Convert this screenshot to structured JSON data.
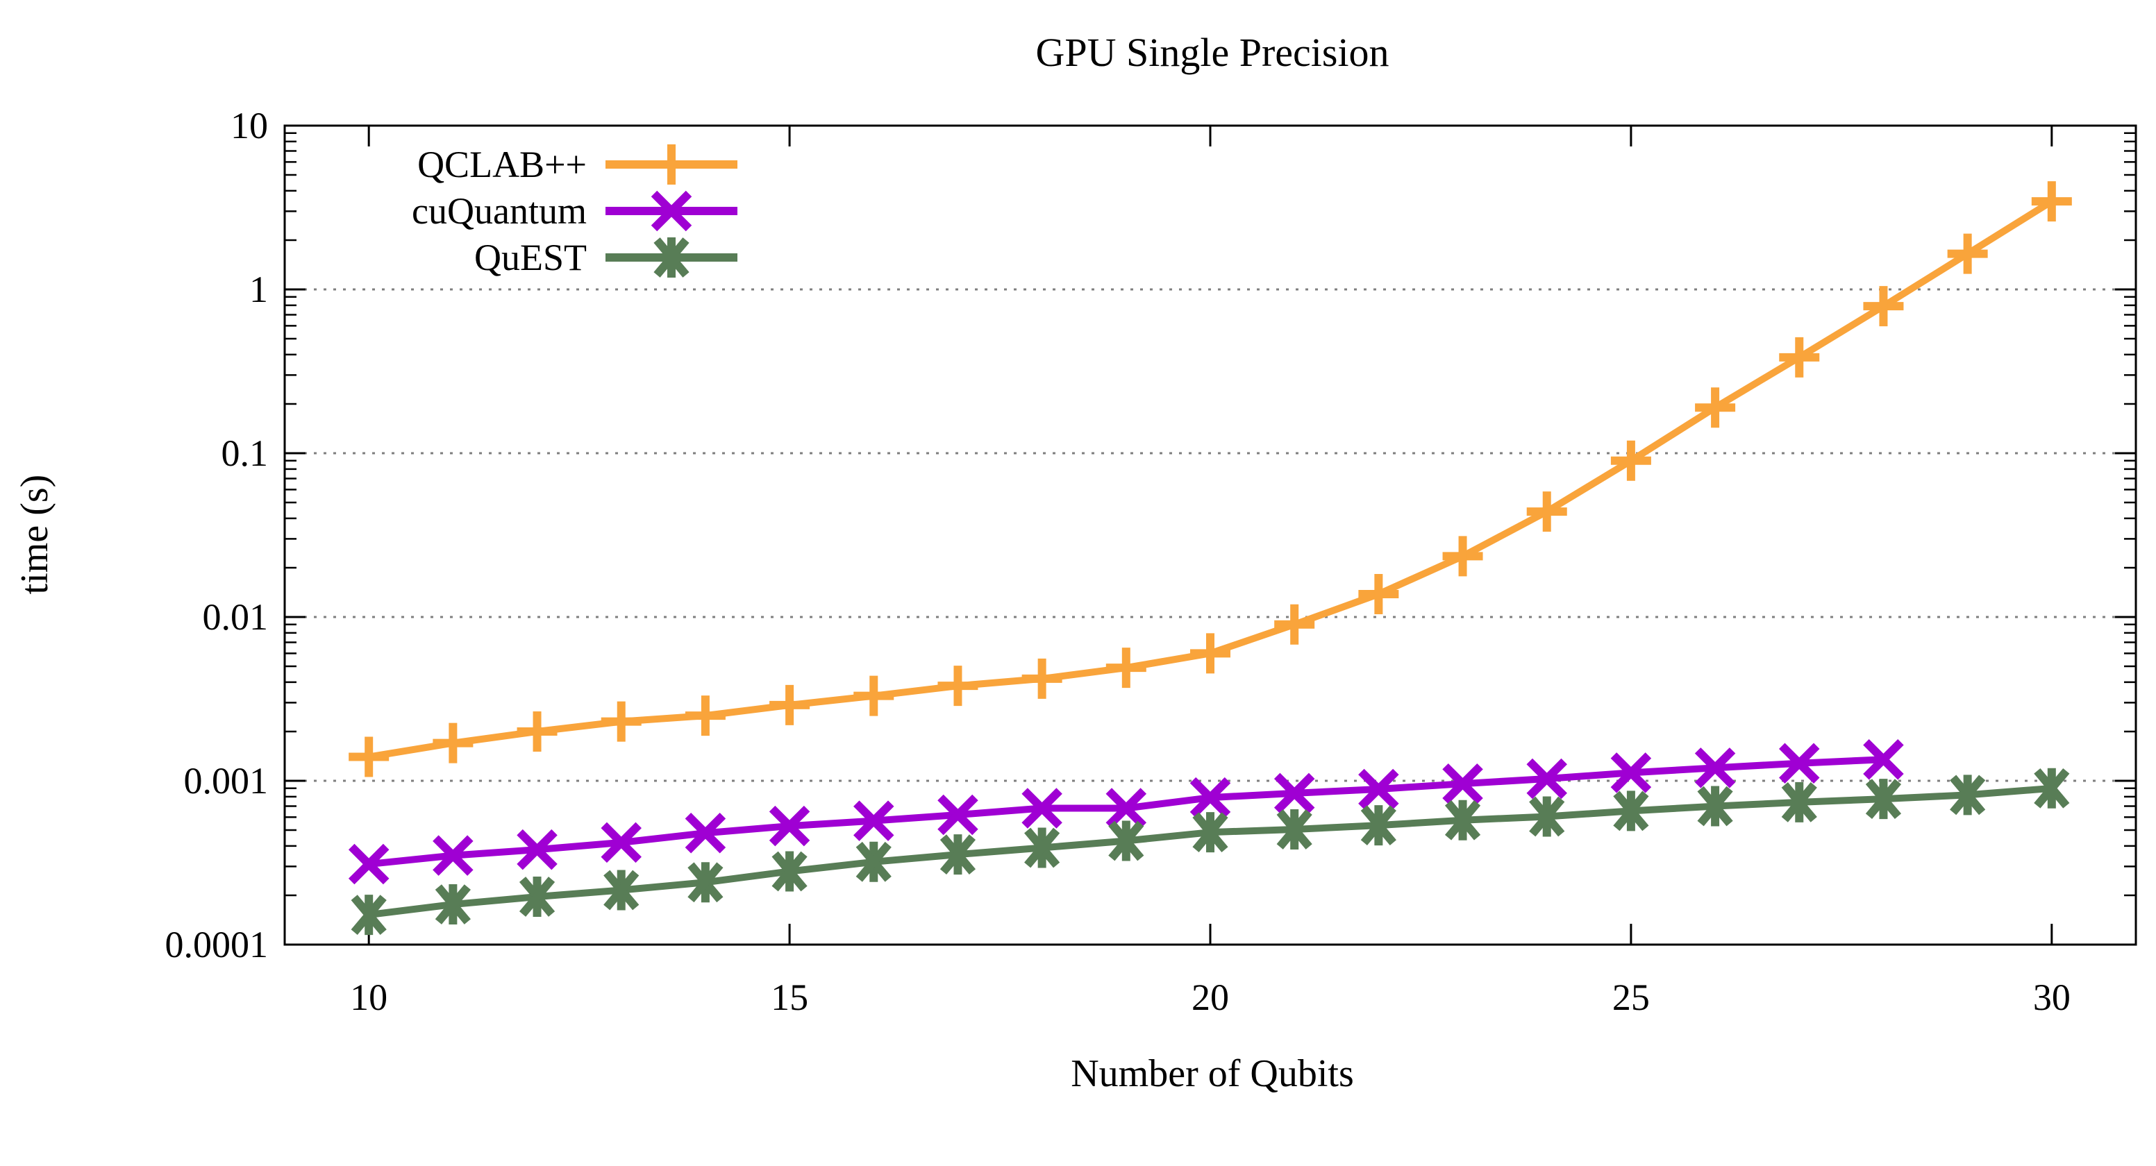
{
  "chart_data": {
    "type": "line",
    "title": "GPU Single Precision",
    "xlabel": "Number of Qubits",
    "ylabel": "time (s)",
    "grid": "horizontal dotted lines at each decade",
    "legend_position": "top-left inside plot",
    "x_axis": {
      "min": 9,
      "max": 31,
      "ticks": [
        10,
        15,
        20,
        25,
        30
      ],
      "tick_labels": [
        "10",
        "15",
        "20",
        "25",
        "30"
      ]
    },
    "y_axis": {
      "scale": "log",
      "min": 0.0001,
      "max": 10,
      "tick_values": [
        10,
        1,
        0.1,
        0.01,
        0.001,
        0.0001
      ],
      "tick_labels": [
        "10",
        "1",
        "0.1",
        "0.01",
        "0.001",
        "0.0001"
      ],
      "minor_ticks": "log subdivisions 2-9 per decade"
    },
    "series": [
      {
        "name": "QCLAB++",
        "color": "#F9A43B",
        "marker": "plus",
        "x": [
          10,
          11,
          12,
          13,
          14,
          15,
          16,
          17,
          18,
          19,
          20,
          21,
          22,
          23,
          24,
          25,
          26,
          27,
          28,
          29,
          30
        ],
        "y": [
          0.0014,
          0.0017,
          0.002,
          0.0023,
          0.0025,
          0.0029,
          0.0033,
          0.0038,
          0.0042,
          0.0049,
          0.006,
          0.009,
          0.0138,
          0.0235,
          0.044,
          0.09,
          0.19,
          0.385,
          0.79,
          1.65,
          3.45
        ]
      },
      {
        "name": "cuQuantum",
        "color": "#9F00D3",
        "marker": "cross",
        "x": [
          10,
          11,
          12,
          13,
          14,
          15,
          16,
          17,
          18,
          19,
          20,
          21,
          22,
          23,
          24,
          25,
          26,
          27,
          28
        ],
        "y": [
          0.00031,
          0.00035,
          0.00038,
          0.00042,
          0.00048,
          0.00053,
          0.00057,
          0.00062,
          0.00068,
          0.00068,
          0.00079,
          0.00084,
          0.00089,
          0.00096,
          0.00103,
          0.00112,
          0.0012,
          0.00128,
          0.00135
        ]
      },
      {
        "name": "QuEST",
        "color": "#587D56",
        "marker": "star",
        "x": [
          10,
          11,
          12,
          13,
          14,
          15,
          16,
          17,
          18,
          19,
          20,
          21,
          22,
          23,
          24,
          25,
          26,
          27,
          28,
          29,
          30
        ],
        "y": [
          0.000152,
          0.000176,
          0.000196,
          0.000215,
          0.00024,
          0.00028,
          0.00032,
          0.000355,
          0.00039,
          0.00043,
          0.000485,
          0.000505,
          0.000535,
          0.000575,
          0.000605,
          0.000655,
          0.0007,
          0.00074,
          0.000775,
          0.00082,
          0.0009
        ]
      }
    ],
    "colors": {
      "axis": "#000000",
      "grid": "#7f7f7f",
      "background": "#ffffff"
    }
  }
}
